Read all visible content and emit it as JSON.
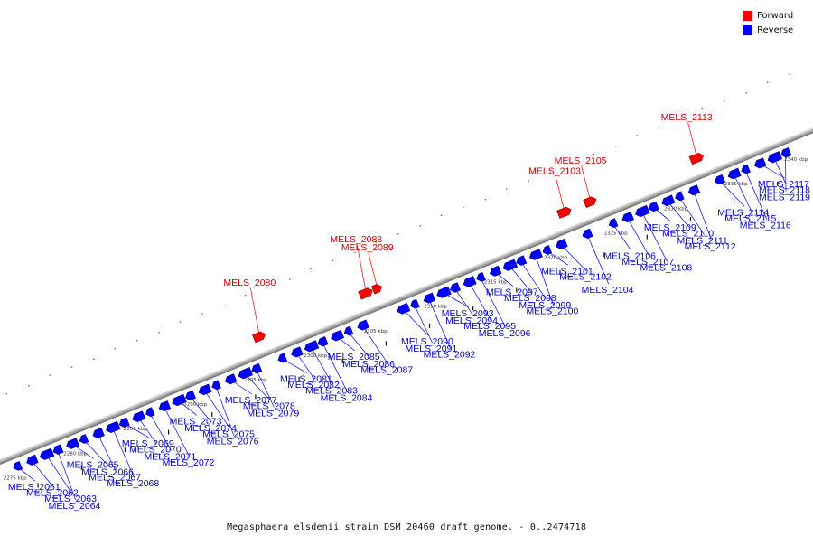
{
  "legend": [
    {
      "label": "Forward",
      "color": "#ff0000"
    },
    {
      "label": "Reverse",
      "color": "#0000ff"
    }
  ],
  "caption": "Megasphaera elsdenii strain DSM 20460 draft genome. - 0..2474718",
  "colors": {
    "forward": "#ff0000",
    "reverse": "#0000ff",
    "backbone": "#9a9a9a",
    "leader": "#1a1a1a"
  },
  "ticks": [
    "2275 kbp",
    "2280 kbp",
    "2285 kbp",
    "2290 kbp",
    "2295 kbp",
    "2300 kbp",
    "2305 kbp",
    "2310 kbp",
    "2315 kbp",
    "2320 kbp",
    "2325 kbp",
    "2330 kbp",
    "2335 kbp",
    "2340 kbp"
  ],
  "genes": [
    {
      "label": "MELS_2061",
      "strand": "reverse"
    },
    {
      "label": "MELS_2062",
      "strand": "reverse"
    },
    {
      "label": "MELS_2063",
      "strand": "reverse"
    },
    {
      "label": "MELS_2064",
      "strand": "reverse"
    },
    {
      "label": "MELS_2065",
      "strand": "reverse"
    },
    {
      "label": "MELS_2066",
      "strand": "reverse"
    },
    {
      "label": "MELS_2067",
      "strand": "reverse"
    },
    {
      "label": "MELS_2068",
      "strand": "reverse"
    },
    {
      "label": "MELS_2069",
      "strand": "reverse"
    },
    {
      "label": "MELS_2070",
      "strand": "reverse"
    },
    {
      "label": "MELS_2071",
      "strand": "reverse"
    },
    {
      "label": "MELS_2072",
      "strand": "reverse"
    },
    {
      "label": "MELS_2073",
      "strand": "reverse"
    },
    {
      "label": "MELS_2074",
      "strand": "reverse"
    },
    {
      "label": "MELS_2075",
      "strand": "reverse"
    },
    {
      "label": "MELS_2076",
      "strand": "reverse"
    },
    {
      "label": "MELS_2077",
      "strand": "reverse"
    },
    {
      "label": "MELS_2078",
      "strand": "reverse"
    },
    {
      "label": "MELS_2079",
      "strand": "reverse"
    },
    {
      "label": "MELS_2080",
      "strand": "forward"
    },
    {
      "label": "MELS_2081",
      "strand": "reverse"
    },
    {
      "label": "MELS_2082",
      "strand": "reverse"
    },
    {
      "label": "MELS_2083",
      "strand": "reverse"
    },
    {
      "label": "MELS_2084",
      "strand": "reverse"
    },
    {
      "label": "MELS_2085",
      "strand": "reverse"
    },
    {
      "label": "MELS_2086",
      "strand": "reverse"
    },
    {
      "label": "MELS_2087",
      "strand": "reverse"
    },
    {
      "label": "MELS_2088",
      "strand": "forward"
    },
    {
      "label": "MELS_2089",
      "strand": "forward"
    },
    {
      "label": "MELS_2090",
      "strand": "reverse"
    },
    {
      "label": "MELS_2091",
      "strand": "reverse"
    },
    {
      "label": "MELS_2092",
      "strand": "reverse"
    },
    {
      "label": "MELS_2093",
      "strand": "reverse"
    },
    {
      "label": "MELS_2094",
      "strand": "reverse"
    },
    {
      "label": "MELS_2095",
      "strand": "reverse"
    },
    {
      "label": "MELS_2096",
      "strand": "reverse"
    },
    {
      "label": "MELS_2097",
      "strand": "reverse"
    },
    {
      "label": "MELS_2098",
      "strand": "reverse"
    },
    {
      "label": "MELS_2099",
      "strand": "reverse"
    },
    {
      "label": "MELS_2100",
      "strand": "reverse"
    },
    {
      "label": "MELS_2101",
      "strand": "reverse"
    },
    {
      "label": "MELS_2102",
      "strand": "reverse"
    },
    {
      "label": "MELS_2103",
      "strand": "forward"
    },
    {
      "label": "MELS_2104",
      "strand": "reverse"
    },
    {
      "label": "MELS_2105",
      "strand": "forward"
    },
    {
      "label": "MELS_2106",
      "strand": "reverse"
    },
    {
      "label": "MELS_2107",
      "strand": "reverse"
    },
    {
      "label": "MELS_2108",
      "strand": "reverse"
    },
    {
      "label": "MELS_2109",
      "strand": "reverse"
    },
    {
      "label": "MELS_2110",
      "strand": "reverse"
    },
    {
      "label": "MELS_2111",
      "strand": "reverse"
    },
    {
      "label": "MELS_2112",
      "strand": "reverse"
    },
    {
      "label": "MELS_2113",
      "strand": "forward"
    },
    {
      "label": "MELS_2114",
      "strand": "reverse"
    },
    {
      "label": "MELS_2115",
      "strand": "reverse"
    },
    {
      "label": "MELS_2116",
      "strand": "reverse"
    },
    {
      "label": "MELS_2117",
      "strand": "reverse"
    },
    {
      "label": "MELS_2118",
      "strand": "reverse"
    },
    {
      "label": "MELS_2119",
      "strand": "reverse"
    }
  ]
}
